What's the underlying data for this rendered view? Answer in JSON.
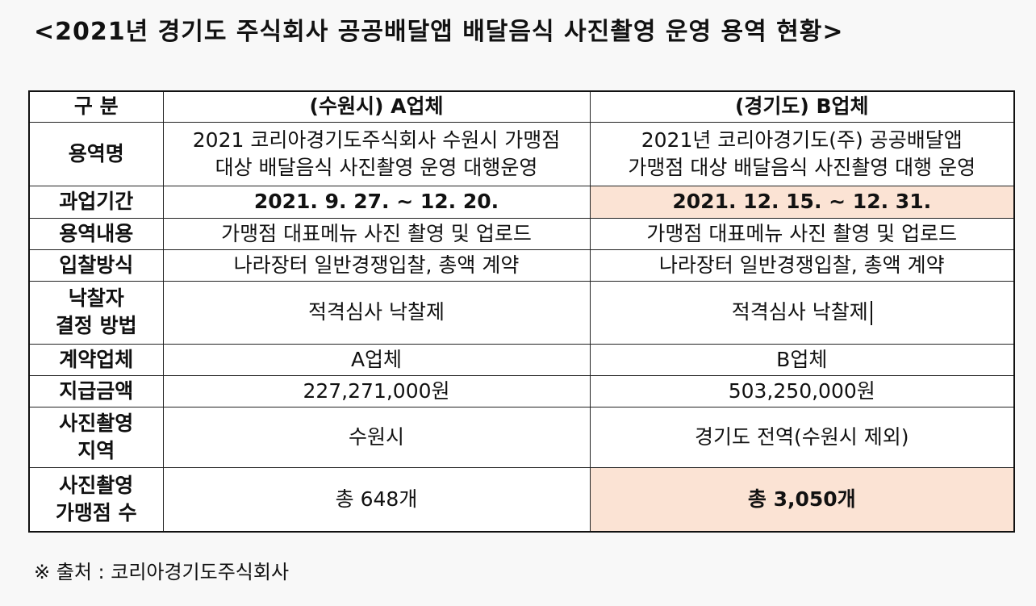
{
  "title": "<2021년 경기도 주식회사 공공배달앱 배달음식 사진촬영 운영 용역 현황>",
  "table": {
    "headers": {
      "category": "구 분",
      "col_a": "(수원시) A업체",
      "col_b": "(경기도) B업체"
    },
    "rows": [
      {
        "label": "용역명",
        "a": "2021 코리아경기도주식회사 수원시 가맹점\n대상 배달음식 사진촬영 운영 대행운영",
        "b": "2021년 코리아경기도(주) 공공배달앱\n가맹점 대상 배달음식 사진촬영 대행 운영"
      },
      {
        "label": "과업기간",
        "a": "2021. 9. 27. ~ 12. 20.",
        "b": "2021. 12. 15. ~ 12. 31."
      },
      {
        "label": "용역내용",
        "a": "가맹점 대표메뉴 사진 촬영 및 업로드",
        "b": "가맹점 대표메뉴 사진 촬영 및 업로드"
      },
      {
        "label": "입찰방식",
        "a": "나라장터 일반경쟁입찰, 총액 계약",
        "b": "나라장터 일반경쟁입찰, 총액 계약"
      },
      {
        "label": "낙찰자\n결정 방법",
        "a": "적격심사 낙찰제",
        "b": "적격심사 낙찰제"
      },
      {
        "label": "계약업체",
        "a": "A업체",
        "b": "B업체"
      },
      {
        "label": "지급금액",
        "a": "227,271,000원",
        "b": "503,250,000원"
      },
      {
        "label": "사진촬영\n지역",
        "a": "수원시",
        "b": "경기도 전역(수원시 제외)"
      },
      {
        "label": "사진촬영\n가맹점 수",
        "a": "총 648개",
        "b": "총 3,050개"
      }
    ]
  },
  "source": "※ 출처 : 코리아경기도주식회사",
  "colors": {
    "highlight": "#fbe3d4",
    "border": "#222222",
    "background": "#f8f8f8"
  }
}
